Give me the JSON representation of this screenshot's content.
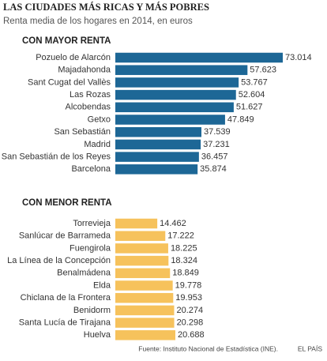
{
  "title": "LAS CIUDADES MÁS RICAS Y MÁS POBRES",
  "subtitle": "Renta media de los hogares en 2014, en euros",
  "source": "Fuente: Instituto Nacional de Estadística (INE).",
  "publisher": "EL PAÍS",
  "chart_data": [
    {
      "type": "bar",
      "orientation": "horizontal",
      "title": "CON MAYOR RENTA",
      "color": "#1d6796",
      "categories": [
        "Pozuelo de Alarcón",
        "Majadahonda",
        "Sant Cugat del Vallès",
        "Las Rozas",
        "Alcobendas",
        "Getxo",
        "San Sebastián",
        "Madrid",
        "San Sebastián de los Reyes",
        "Barcelona"
      ],
      "values": [
        73014,
        57623,
        53767,
        52604,
        51627,
        47849,
        37539,
        37231,
        36457,
        35874
      ],
      "value_labels": [
        "73.014",
        "57.623",
        "53.767",
        "52.604",
        "51.627",
        "47.849",
        "37.539",
        "37.231",
        "36.457",
        "35.874"
      ]
    },
    {
      "type": "bar",
      "orientation": "horizontal",
      "title": "CON MENOR RENTA",
      "color": "#f6c25c",
      "categories": [
        "Torrevieja",
        "Sanlúcar de Barrameda",
        "Fuengirola",
        "La Línea de la Concepción",
        "Benalmádena",
        "Elda",
        "Chiclana de la Frontera",
        "Benidorm",
        "Santa Lucía de Tirajana",
        "Huelva"
      ],
      "values": [
        14462,
        17222,
        18225,
        18324,
        18849,
        19778,
        19953,
        20274,
        20298,
        20688
      ],
      "value_labels": [
        "14.462",
        "17.222",
        "18.225",
        "18.324",
        "18.849",
        "19.778",
        "19.953",
        "20.274",
        "20.298",
        "20.688"
      ]
    }
  ]
}
